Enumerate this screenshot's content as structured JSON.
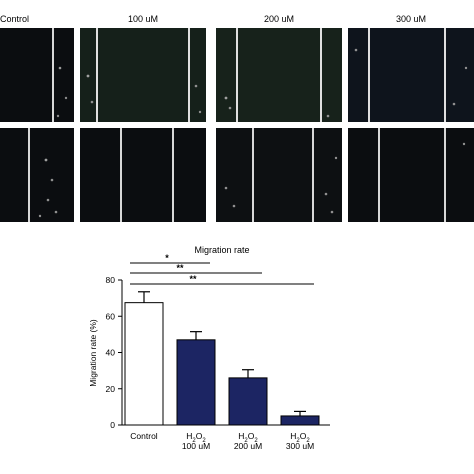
{
  "panels": {
    "labels": [
      "Control",
      "100 uM",
      "200 uM",
      "300 uM"
    ]
  },
  "chart_data": {
    "type": "bar",
    "title": "Migration rate",
    "ylabel": "Migration rate (%)",
    "xlabel": "",
    "categories": [
      "Control",
      "H2O2 100 uM",
      "H2O2 200 uM",
      "H2O2 300 uM"
    ],
    "category_lines": [
      [
        "Control"
      ],
      [
        "H2O2",
        "100 uM"
      ],
      [
        "H2O2",
        "200 uM"
      ],
      [
        "H2O2",
        "300 uM"
      ]
    ],
    "values": [
      67.5,
      47,
      26,
      5
    ],
    "errors": [
      6,
      4.5,
      4.5,
      2.5
    ],
    "bar_colors": [
      "#ffffff",
      "#1c2563",
      "#1c2563",
      "#1c2563"
    ],
    "ylim": [
      0,
      80
    ],
    "yticks": [
      0,
      20,
      40,
      60,
      80
    ],
    "significance": [
      {
        "from": 0,
        "to": 1,
        "label": "*"
      },
      {
        "from": 0,
        "to": 2,
        "label": "**"
      },
      {
        "from": 0,
        "to": 3,
        "label": "**"
      }
    ],
    "grid": false
  }
}
